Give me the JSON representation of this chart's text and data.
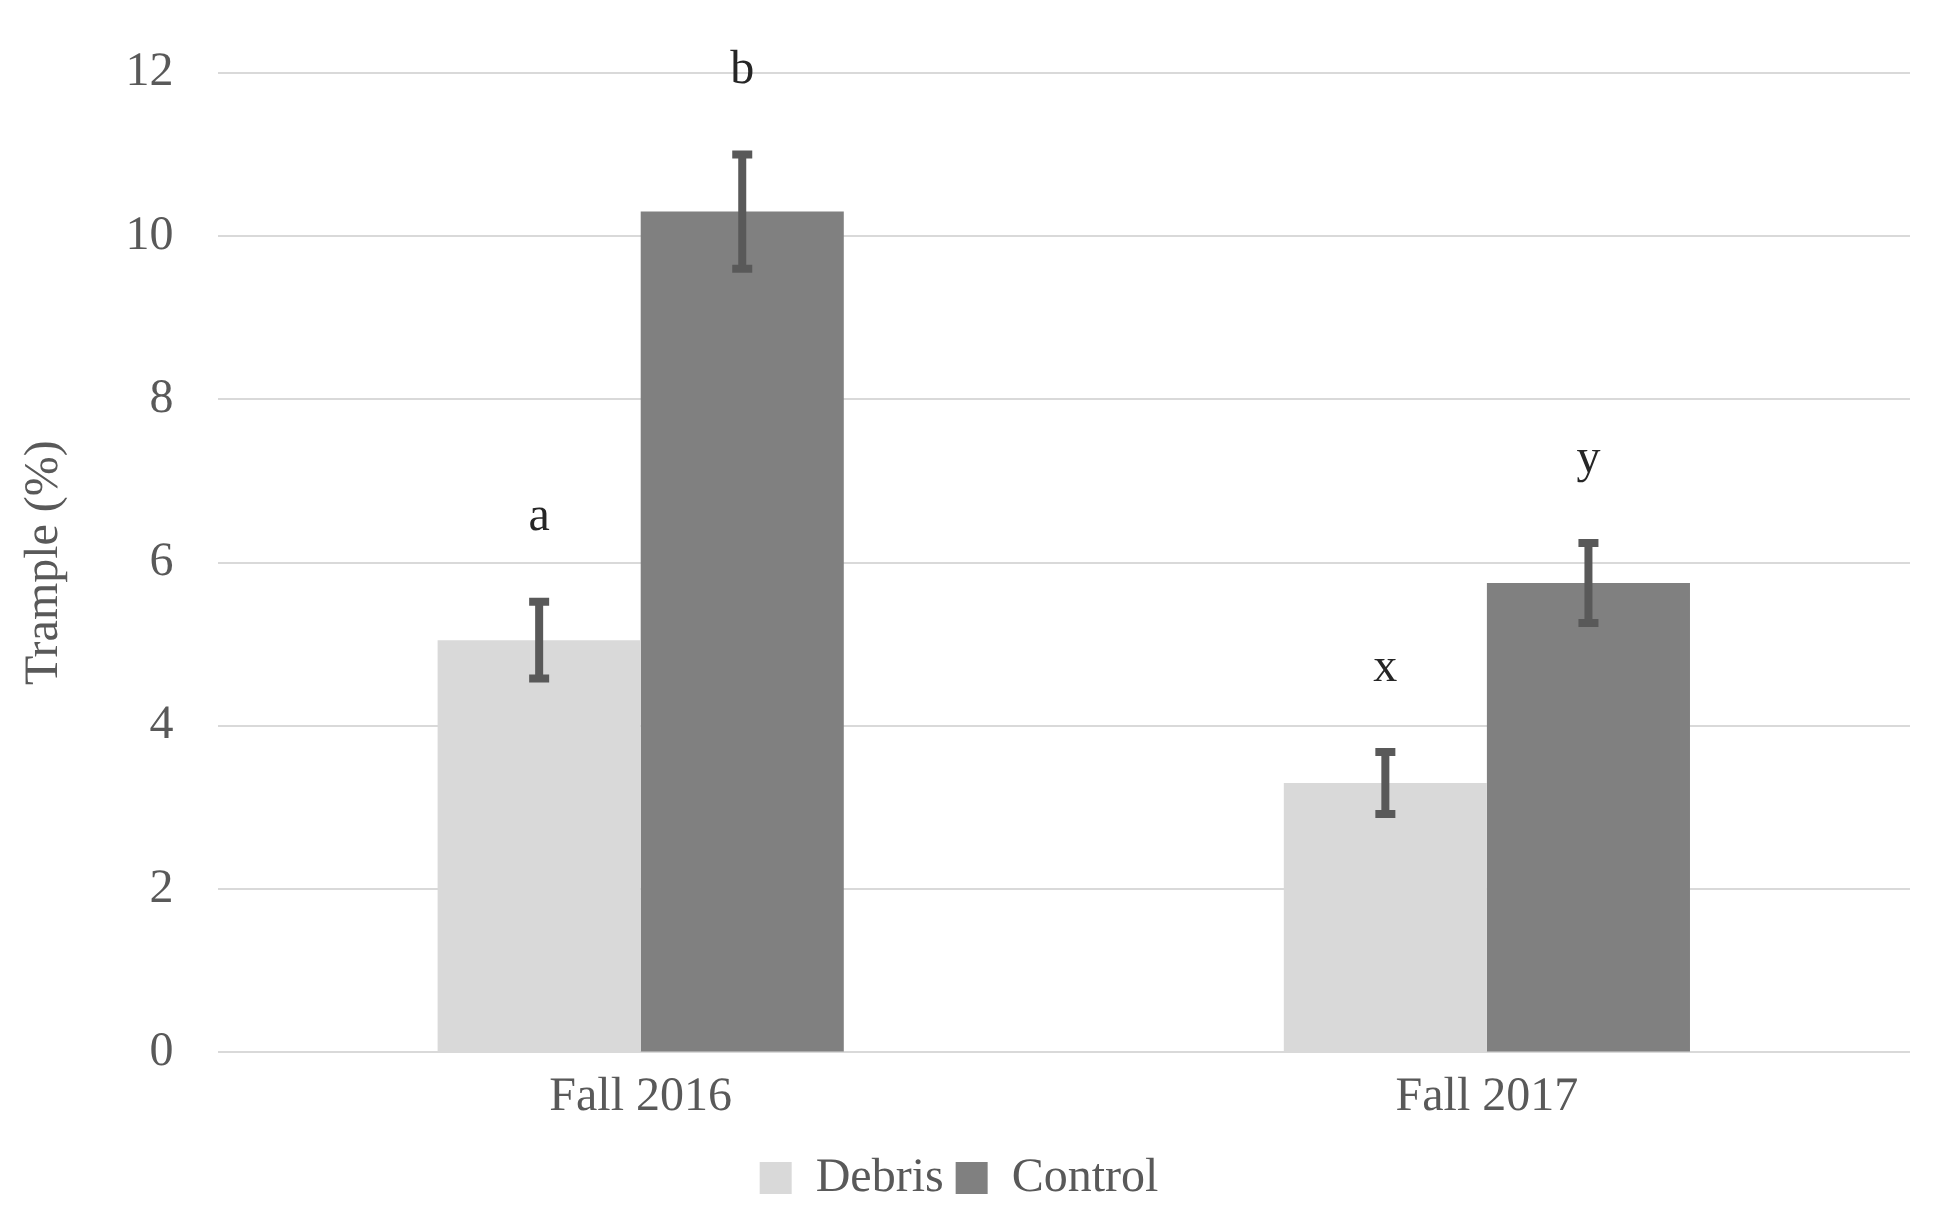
{
  "chart_data": {
    "type": "bar",
    "ylabel": "Trample (%)",
    "categories": [
      "Fall 2016",
      "Fall 2017"
    ],
    "series": [
      {
        "name": "Debris",
        "color": "#d9d9d9",
        "values": [
          5.05,
          3.3
        ],
        "errors": [
          0.47,
          0.38
        ]
      },
      {
        "name": "Control",
        "color": "#808080",
        "values": [
          10.3,
          5.75
        ],
        "errors": [
          0.7,
          0.49
        ]
      }
    ],
    "annotations": [
      "a",
      "b",
      "x",
      "y"
    ],
    "ylim": [
      0,
      12
    ],
    "yticks": [
      0,
      2,
      4,
      6,
      8,
      10,
      12
    ],
    "grid": "y",
    "legend": "bottom"
  }
}
